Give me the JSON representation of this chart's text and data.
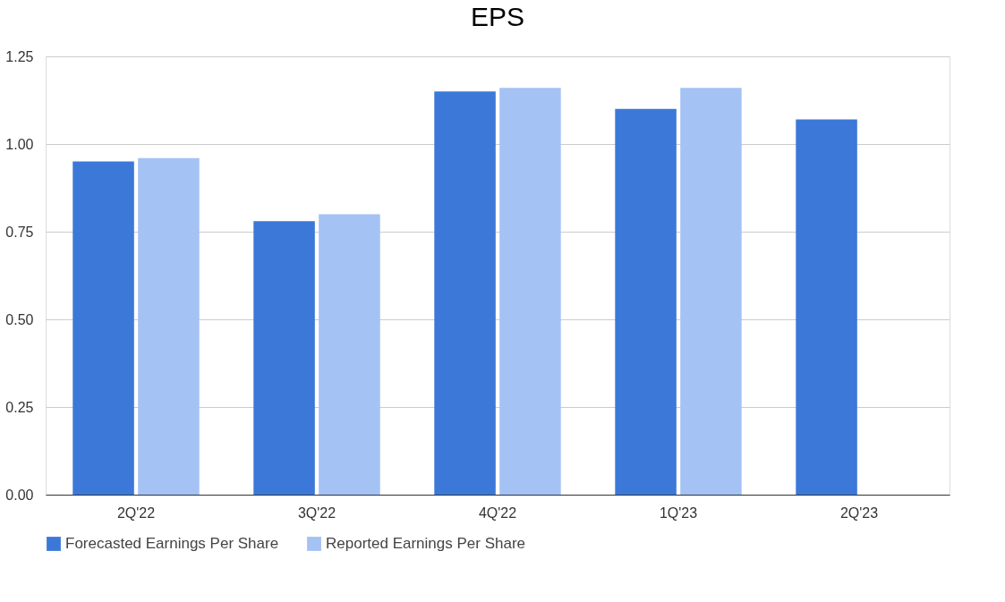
{
  "chart_data": {
    "type": "bar",
    "title": "EPS",
    "categories": [
      "2Q'22",
      "3Q'22",
      "4Q'22",
      "1Q'23",
      "2Q'23"
    ],
    "series": [
      {
        "name": "Forecasted Earnings Per Share",
        "color": "#3c78d8",
        "values": [
          0.95,
          0.78,
          1.15,
          1.1,
          1.07
        ]
      },
      {
        "name": "Reported Earnings Per Share",
        "color": "#a4c2f4",
        "values": [
          0.96,
          0.8,
          1.16,
          1.16,
          null
        ]
      }
    ],
    "ylim": [
      0,
      1.25
    ],
    "yticks": [
      {
        "value": 0,
        "label": "0.00"
      },
      {
        "value": 0.25,
        "label": "0.25"
      },
      {
        "value": 0.5,
        "label": "0.50"
      },
      {
        "value": 0.75,
        "label": "0.75"
      },
      {
        "value": 1,
        "label": "1.00"
      },
      {
        "value": 1.25,
        "label": "1.25"
      }
    ],
    "grid": "y",
    "legend": "bottom"
  }
}
